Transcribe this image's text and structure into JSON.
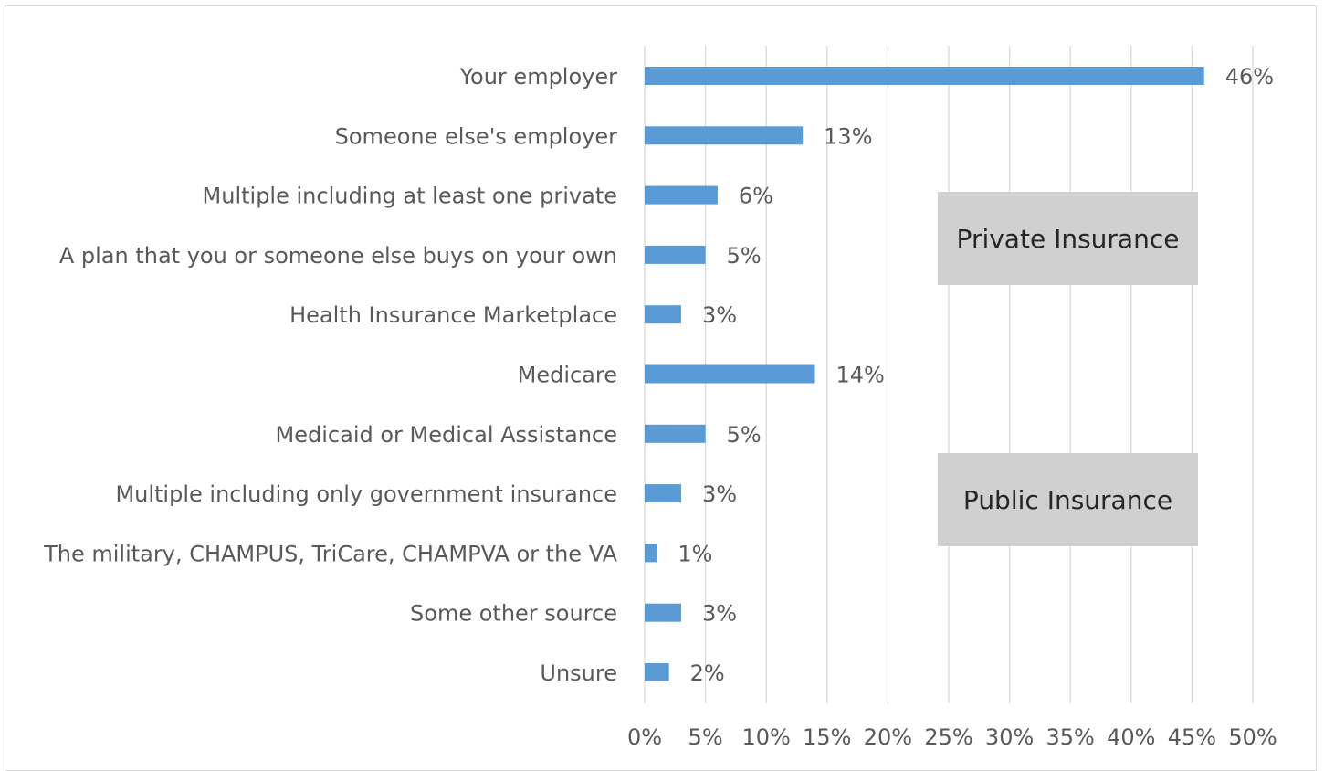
{
  "chart_data": {
    "type": "bar",
    "orientation": "horizontal",
    "categories": [
      "Your employer",
      "Someone else's employer",
      "Multiple including at least one private",
      "A plan that you or someone else buys on your own",
      "Health Insurance Marketplace",
      "Medicare",
      "Medicaid or Medical Assistance",
      "Multiple including only government insurance",
      "The military, CHAMPUS, TriCare, CHAMPVA or the VA",
      "Some other source",
      "Unsure"
    ],
    "values": [
      46,
      13,
      6,
      5,
      3,
      14,
      5,
      3,
      1,
      3,
      2
    ],
    "value_labels": [
      "46%",
      "13%",
      "6%",
      "5%",
      "3%",
      "14%",
      "5%",
      "3%",
      "1%",
      "3%",
      "2%"
    ],
    "xlim": [
      0,
      50
    ],
    "x_ticks": [
      "0%",
      "5%",
      "10%",
      "15%",
      "20%",
      "25%",
      "30%",
      "35%",
      "40%",
      "45%",
      "50%"
    ],
    "grid": true,
    "title": "",
    "xlabel": "",
    "ylabel": "",
    "bar_color": "#5b9bd5",
    "annotations": [
      "Private Insurance",
      "Public Insurance"
    ]
  }
}
